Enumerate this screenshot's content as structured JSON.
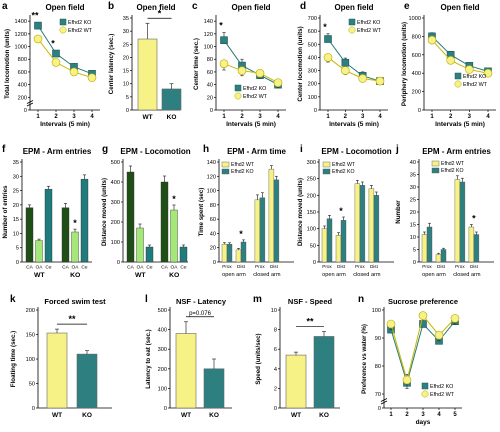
{
  "colors": {
    "ko": "#2e7f80",
    "wt": "#f7f286",
    "ko_line": "#2a7a7a",
    "wt_line": "#c8b800",
    "dk": "#1f4f16",
    "md": "#3aa93a",
    "lt": "#a5e87a",
    "teal": "#1f7b7c",
    "axis": "#000000"
  },
  "chart_data": [
    {
      "id": "a",
      "type": "line",
      "title": "Open field",
      "xlabel": "Intervals (5 min)",
      "ylabel": "Total locomotion (units)",
      "categories": [
        "1",
        "2",
        "3",
        "4"
      ],
      "yticks": [
        0,
        200,
        400,
        600,
        800,
        1000,
        1200,
        1400
      ],
      "ylim": [
        0,
        1450
      ],
      "axis_break": true,
      "series": [
        {
          "name": "Efhd2 KO",
          "values": [
            1330,
            890,
            680,
            570
          ],
          "err": [
            50,
            50,
            40,
            40
          ]
        },
        {
          "name": "Efhd2 WT",
          "values": [
            1120,
            750,
            600,
            510
          ],
          "err": [
            50,
            40,
            40,
            35
          ]
        }
      ],
      "annotations": [
        {
          "text": "**",
          "at": "1"
        },
        {
          "text": "*",
          "at": "2"
        }
      ]
    },
    {
      "id": "b",
      "type": "bar",
      "title": "Open field",
      "ylabel": "Center latency (sec.)",
      "categories": [
        "WT",
        "KO"
      ],
      "values": [
        27,
        8
      ],
      "err": [
        6,
        2
      ],
      "yticks": [
        0,
        5,
        10,
        15,
        20,
        25,
        30,
        35
      ],
      "ylim": [
        0,
        35
      ],
      "annotations": [
        {
          "text": "*"
        }
      ]
    },
    {
      "id": "c",
      "type": "line",
      "title": "Open field",
      "xlabel": "Intervals (5 min)",
      "ylabel": "Center time (sec.)",
      "categories": [
        "1",
        "2",
        "3",
        "4"
      ],
      "yticks": [
        0,
        20,
        40,
        60,
        80,
        100,
        120,
        140
      ],
      "ylim": [
        0,
        145
      ],
      "series": [
        {
          "name": "Efhd2 KO",
          "values": [
            110,
            70,
            55,
            40
          ],
          "err": [
            12,
            10,
            8,
            8
          ]
        },
        {
          "name": "Efhd2 WT",
          "values": [
            73,
            62,
            58,
            43
          ],
          "err": [
            10,
            8,
            8,
            8
          ]
        }
      ],
      "annotations": [
        {
          "text": "*",
          "at": "1"
        }
      ]
    },
    {
      "id": "d",
      "type": "line",
      "title": "Open field",
      "xlabel": "Intervals (5 min)",
      "ylabel": "Center locomotion (units)",
      "categories": [
        "1",
        "2",
        "3",
        "4"
      ],
      "yticks": [
        0,
        100,
        200,
        300,
        400,
        500,
        600,
        700
      ],
      "ylim": [
        0,
        700
      ],
      "series": [
        {
          "name": "Efhd2 KO",
          "values": [
            540,
            360,
            260,
            220
          ],
          "err": [
            40,
            35,
            30,
            25
          ]
        },
        {
          "name": "Efhd2 WT",
          "values": [
            400,
            300,
            240,
            220
          ],
          "err": [
            35,
            30,
            25,
            25
          ]
        }
      ],
      "annotations": [
        {
          "text": "*",
          "at": "1"
        }
      ]
    },
    {
      "id": "e",
      "type": "line",
      "title": "Open field",
      "xlabel": "Intervals (5 min)",
      "ylabel": "Periphery locomotion (units)",
      "categories": [
        "1",
        "2",
        "3",
        "4"
      ],
      "yticks": [
        0,
        200,
        400,
        600,
        800,
        1000
      ],
      "ylim": [
        0,
        1000
      ],
      "series": [
        {
          "name": "Efhd2 KO",
          "values": [
            800,
            600,
            480,
            420
          ],
          "err": [
            40,
            35,
            30,
            30
          ]
        },
        {
          "name": "Efhd2 WT",
          "values": [
            760,
            540,
            440,
            400
          ],
          "err": [
            40,
            35,
            30,
            30
          ]
        }
      ]
    },
    {
      "id": "f",
      "type": "bar",
      "title": "EPM - Arm entries",
      "ylabel": "Number of entries",
      "groups": [
        "WT",
        "KO"
      ],
      "bar_labels": [
        "CA",
        "OA",
        "Ce"
      ],
      "values": [
        [
          19,
          7.5,
          25.5
        ],
        [
          19,
          10.5,
          29
        ]
      ],
      "err": [
        [
          1,
          0.5,
          1
        ],
        [
          1.5,
          1,
          1.5
        ]
      ],
      "yticks": [
        0,
        5,
        10,
        15,
        20,
        25,
        30,
        35
      ],
      "ylim": [
        0,
        35
      ],
      "annotations": [
        {
          "text": "*",
          "at": "KO OA"
        }
      ]
    },
    {
      "id": "g",
      "type": "bar",
      "title": "EPM - Locomotion",
      "ylabel": "Distance moved (units)",
      "groups": [
        "WT",
        "KO"
      ],
      "bar_labels": [
        "CA",
        "OA",
        "Ce"
      ],
      "values": [
        [
          450,
          170,
          75
        ],
        [
          400,
          260,
          75
        ]
      ],
      "err": [
        [
          30,
          20,
          10
        ],
        [
          30,
          25,
          10
        ]
      ],
      "yticks": [
        0,
        100,
        200,
        300,
        400,
        500
      ],
      "ylim": [
        0,
        500
      ],
      "annotations": [
        {
          "text": "*",
          "at": "KO OA"
        }
      ]
    },
    {
      "id": "h",
      "type": "bar",
      "title": "EPM - Arm time",
      "ylabel": "Time spent (sec)",
      "legend": [
        "Efhd2 WT",
        "Efhd2 KO"
      ],
      "categories": [
        "Prox",
        "Dist",
        "Prox",
        "Dist"
      ],
      "groups": [
        "open arm",
        "closed arm"
      ],
      "series": [
        {
          "name": "Efhd2 WT",
          "values": [
            25,
            17,
            87,
            130
          ],
          "err": [
            2,
            2,
            7,
            5
          ]
        },
        {
          "name": "Efhd2 KO",
          "values": [
            25,
            28,
            90,
            115
          ],
          "err": [
            2,
            3,
            7,
            5
          ]
        }
      ],
      "yticks": [
        0,
        20,
        40,
        60,
        80,
        100,
        120,
        140
      ],
      "ylim": [
        0,
        140
      ],
      "annotations": [
        {
          "text": "*",
          "at": "open arm Dist"
        }
      ]
    },
    {
      "id": "i",
      "type": "bar",
      "title": "EPM - Locomotion",
      "ylabel": "Distance moved (units)",
      "legend": [
        "Efhd2 WT",
        "Efhd2 KO"
      ],
      "categories": [
        "Prox",
        "Dist",
        "Prox",
        "Dist"
      ],
      "groups": [
        "open arm",
        "closed arm"
      ],
      "series": [
        {
          "name": "Efhd2 WT",
          "values": [
            100,
            80,
            235,
            220
          ],
          "err": [
            8,
            8,
            10,
            10
          ]
        },
        {
          "name": "Efhd2 KO",
          "values": [
            130,
            125,
            230,
            200
          ],
          "err": [
            10,
            10,
            10,
            10
          ]
        }
      ],
      "yticks": [
        0,
        50,
        100,
        150,
        200,
        250,
        300
      ],
      "ylim": [
        0,
        300
      ],
      "annotations": [
        {
          "text": "*",
          "at": "open arm Dist"
        }
      ]
    },
    {
      "id": "j",
      "type": "bar",
      "title": "EPM - Arm entries",
      "ylabel": "Number",
      "legend": [
        "Efhd2 WT",
        "Efhd2 KO"
      ],
      "categories": [
        "Prox",
        "Dist",
        "Prox",
        "Dist"
      ],
      "groups": [
        "open arm",
        "closed arm"
      ],
      "series": [
        {
          "name": "Efhd2 WT",
          "values": [
            11,
            3,
            33,
            14
          ],
          "err": [
            1,
            0.5,
            1.5,
            1
          ]
        },
        {
          "name": "Efhd2 KO",
          "values": [
            14,
            5,
            32,
            11
          ],
          "err": [
            1.5,
            0.5,
            1.5,
            1
          ]
        }
      ],
      "yticks": [
        0,
        5,
        10,
        15,
        20,
        25,
        30,
        35,
        40
      ],
      "ylim": [
        0,
        40
      ],
      "annotations": [
        {
          "text": "*",
          "at": "closed arm Dist"
        }
      ]
    },
    {
      "id": "k",
      "type": "bar",
      "title": "Forced swim test",
      "ylabel": "Floating time (sec.)",
      "categories": [
        "WT",
        "KO"
      ],
      "values": [
        153,
        110
      ],
      "err": [
        8,
        7
      ],
      "yticks": [
        0,
        50,
        100,
        150,
        200
      ],
      "ylim": [
        0,
        200
      ],
      "annotations": [
        {
          "text": "**"
        }
      ]
    },
    {
      "id": "l",
      "type": "bar",
      "title": "NSF - Latency",
      "ylabel": "Latency to eat (sec.)",
      "categories": [
        "WT",
        "KO"
      ],
      "values": [
        380,
        200
      ],
      "err": [
        60,
        50
      ],
      "yticks": [
        0,
        100,
        200,
        300,
        400,
        500
      ],
      "ylim": [
        0,
        500
      ],
      "annotations": [
        {
          "text": "p=0.076"
        }
      ]
    },
    {
      "id": "m",
      "type": "bar",
      "title": "NSF - Speed",
      "ylabel": "Speed (units/sec)",
      "categories": [
        "WT",
        "KO"
      ],
      "values": [
        5.4,
        7.3
      ],
      "err": [
        0.3,
        0.5
      ],
      "yticks": [
        0,
        2,
        4,
        6,
        8,
        10
      ],
      "ylim": [
        0,
        10
      ],
      "annotations": [
        {
          "text": "**"
        }
      ]
    },
    {
      "id": "n",
      "type": "line",
      "title": "Sucrose preference",
      "xlabel": "days",
      "ylabel": "Preference vs water (%)",
      "categories": [
        "1",
        "2",
        "3",
        "4",
        "5"
      ],
      "yticks": [
        0,
        70,
        80,
        90,
        100
      ],
      "ylim": [
        65,
        100
      ],
      "axis_break": true,
      "series": [
        {
          "name": "Efhd2 KO",
          "values": [
            93,
            74,
            95,
            89,
            96
          ],
          "err": [
            2,
            3,
            2,
            2,
            2
          ]
        },
        {
          "name": "Efhd2 WT",
          "values": [
            95,
            75,
            98,
            91,
            97
          ],
          "err": [
            2,
            3,
            1,
            2,
            2
          ]
        }
      ]
    }
  ]
}
